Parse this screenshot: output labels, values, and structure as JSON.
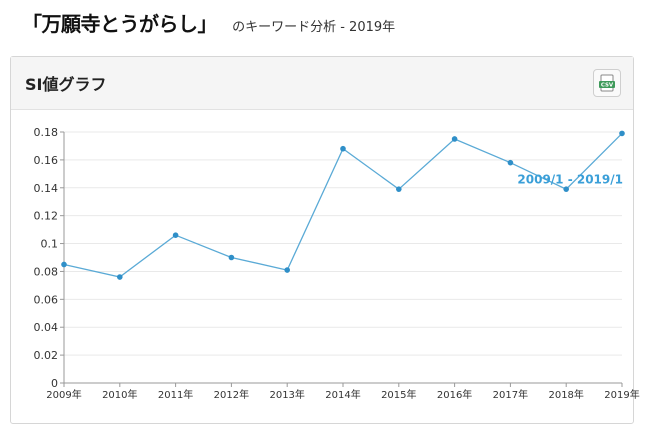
{
  "heading": {
    "keyword": "「万願寺とうがらし」",
    "subtitle": "のキーワード分析 - 2019年"
  },
  "panel": {
    "title": "SI値グラフ",
    "csv_label": "CSV"
  },
  "colors": {
    "line": "#5aaad6",
    "point": "#2f8fc8",
    "annotation": "#3a9fd8",
    "grid": "#e9e9e9"
  },
  "chart_data": {
    "type": "line",
    "title": "SI値グラフ",
    "xlabel": "",
    "ylabel": "",
    "categories": [
      "2009年",
      "2010年",
      "2011年",
      "2012年",
      "2013年",
      "2014年",
      "2015年",
      "2016年",
      "2017年",
      "2018年",
      "2019年"
    ],
    "series": [
      {
        "values": [
          0.085,
          0.076,
          0.106,
          0.09,
          0.081,
          0.168,
          0.139,
          0.175,
          0.158,
          0.139,
          0.179
        ]
      }
    ],
    "ylim": [
      0,
      0.18
    ],
    "yticks": [
      0,
      0.02,
      0.04,
      0.06,
      0.08,
      0.1,
      0.12,
      0.14,
      0.16,
      0.18
    ],
    "ytick_labels": [
      "0",
      "0.02",
      "0.04",
      "0.06",
      "0.08",
      "0.1",
      "0.12",
      "0.14",
      "0.16",
      "0.18"
    ],
    "grid": true,
    "annotation": "2009/1 - 2019/1"
  }
}
